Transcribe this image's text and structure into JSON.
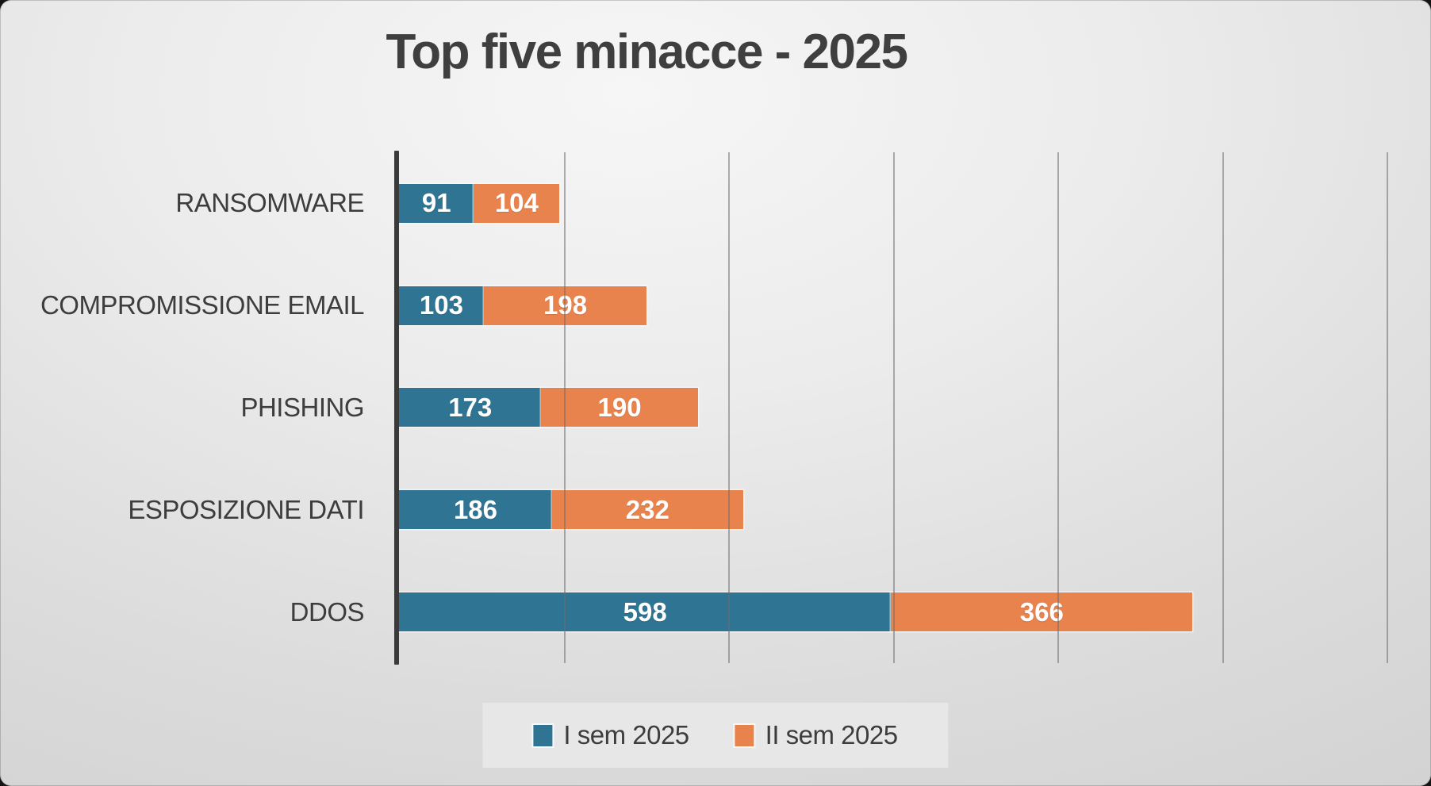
{
  "chart_data": {
    "type": "bar",
    "orientation": "horizontal",
    "stacked": true,
    "title": "Top five minacce - 2025",
    "categories": [
      "RANSOMWARE",
      "COMPROMISSIONE EMAIL",
      "PHISHING",
      "ESPOSIZIONE DATI",
      "DDOS"
    ],
    "series": [
      {
        "name": "I sem 2025",
        "color": "#2F7492",
        "values": [
          91,
          103,
          173,
          186,
          598
        ]
      },
      {
        "name": "II sem 2025",
        "color": "#E8834E",
        "values": [
          104,
          198,
          190,
          232,
          366
        ]
      }
    ],
    "totals": [
      195,
      301,
      363,
      418,
      964
    ],
    "value_labels": "inside-center",
    "xlabel": "",
    "ylabel": "",
    "xlim": [
      0,
      1200
    ],
    "grid_step": 200,
    "grid": "vertical-lines-only",
    "axis_tick_labels_shown": false,
    "legend_position": "bottom-center"
  },
  "colors": {
    "title_text": "#3F3F3F",
    "label_text": "#3D3D3D",
    "axis_line": "#3A3A3A",
    "gridline": "#6E6E6E",
    "value_text": "#FFFFFF",
    "legend_bg": "#E7E7E7",
    "series_1": "#2F7492",
    "series_2": "#E8834E"
  }
}
